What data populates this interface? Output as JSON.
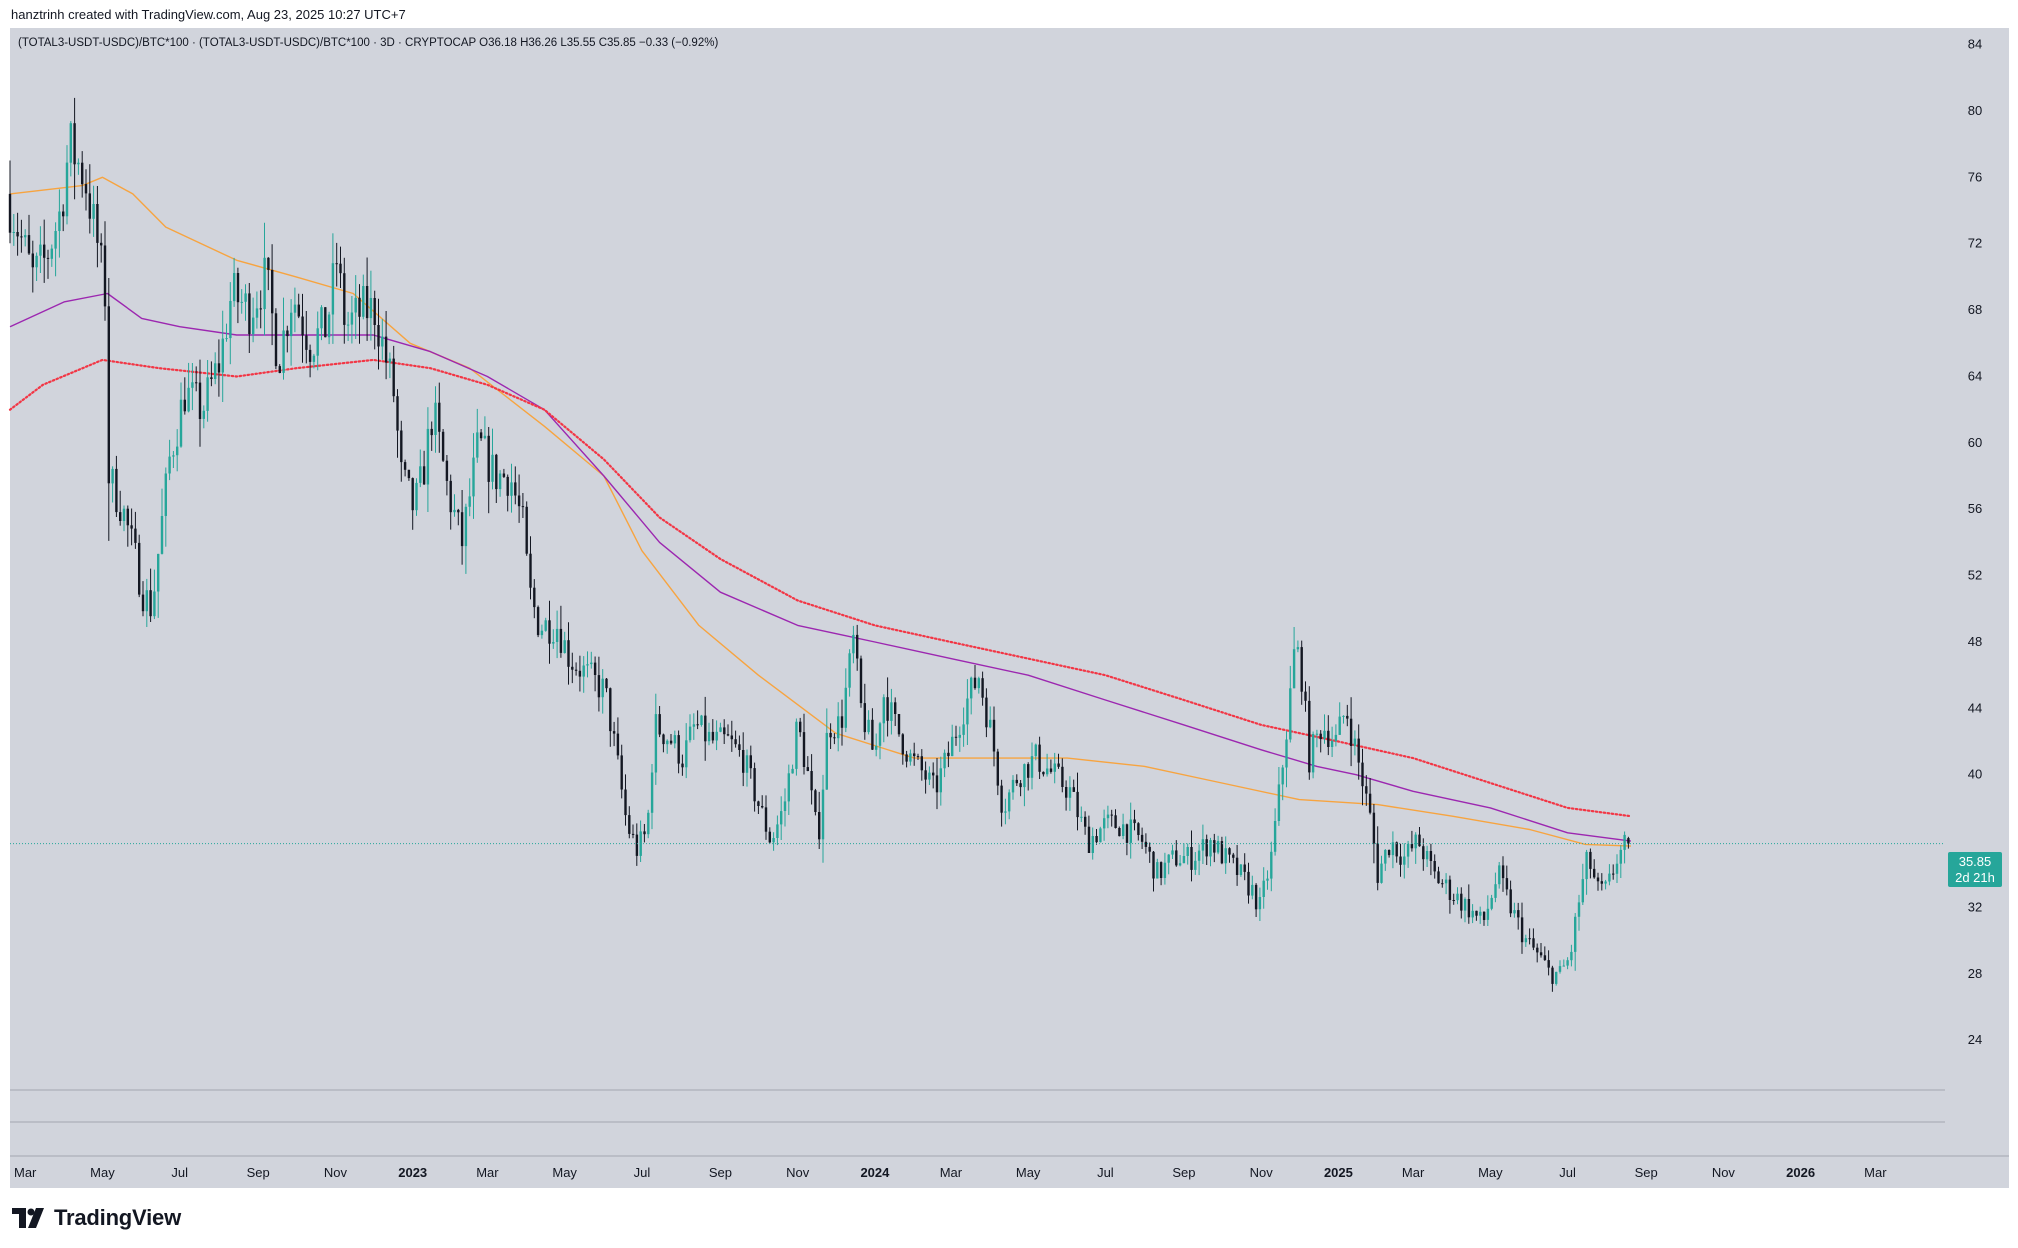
{
  "header": {
    "creator_line": "hanztrinh created with TradingView.com, Aug 23, 2025 10:27 UTC+7",
    "legend_line": "(TOTAL3-USDT-USDC)/BTC*100 · (TOTAL3-USDT-USDC)/BTC*100 · 3D · CRYPTOCAP  O36.18  H36.26  L35.55  C35.85  −0.33 (−0.92%)"
  },
  "brand": {
    "name": "TradingView",
    "logo_icon": "tradingview-logo-icon"
  },
  "price_badge": {
    "price": "35.85",
    "countdown": "2d 21h",
    "color": "#26a69a"
  },
  "colors": {
    "background": "#d1d4dc",
    "up": "#26a69a",
    "down": "#131722",
    "ma_orange": "#f7a440",
    "ma_purple": "#9c27b0",
    "ma_red_dotted": "#f23645",
    "last_price_line": "#26a69a"
  },
  "chart_data": {
    "type": "candlestick",
    "timeframe": "3D",
    "symbol": "(TOTAL3-USDT-USDC)/BTC*100",
    "last": {
      "open": 36.18,
      "high": 36.26,
      "low": 35.55,
      "close": 35.85,
      "change": -0.33,
      "change_pct": -0.92
    },
    "ylim": [
      21,
      85
    ],
    "y_ticks": [
      84,
      80,
      76,
      72,
      68,
      64,
      60,
      56,
      52,
      48,
      44,
      40,
      32,
      28,
      24
    ],
    "x_range": [
      "2022-02-17",
      "2026-04-25"
    ],
    "x_ticks": [
      {
        "date": "2022-03-01",
        "label": "Mar"
      },
      {
        "date": "2022-05-01",
        "label": "May"
      },
      {
        "date": "2022-07-01",
        "label": "Jul"
      },
      {
        "date": "2022-09-01",
        "label": "Sep"
      },
      {
        "date": "2022-11-01",
        "label": "Nov"
      },
      {
        "date": "2023-01-01",
        "label": "2023",
        "bold": true
      },
      {
        "date": "2023-03-01",
        "label": "Mar"
      },
      {
        "date": "2023-05-01",
        "label": "May"
      },
      {
        "date": "2023-07-01",
        "label": "Jul"
      },
      {
        "date": "2023-09-01",
        "label": "Sep"
      },
      {
        "date": "2023-11-01",
        "label": "Nov"
      },
      {
        "date": "2024-01-01",
        "label": "2024",
        "bold": true
      },
      {
        "date": "2024-03-01",
        "label": "Mar"
      },
      {
        "date": "2024-05-01",
        "label": "May"
      },
      {
        "date": "2024-07-01",
        "label": "Jul"
      },
      {
        "date": "2024-09-01",
        "label": "Sep"
      },
      {
        "date": "2024-11-01",
        "label": "Nov"
      },
      {
        "date": "2025-01-01",
        "label": "2025",
        "bold": true
      },
      {
        "date": "2025-03-01",
        "label": "Mar"
      },
      {
        "date": "2025-05-01",
        "label": "May"
      },
      {
        "date": "2025-07-01",
        "label": "Jul"
      },
      {
        "date": "2025-09-01",
        "label": "Sep"
      },
      {
        "date": "2025-11-01",
        "label": "Nov"
      },
      {
        "date": "2026-01-01",
        "label": "2026",
        "bold": true
      },
      {
        "date": "2026-03-01",
        "label": "Mar"
      }
    ],
    "price_path": [
      [
        "2022-02-17",
        75
      ],
      [
        "2022-02-26",
        73
      ],
      [
        "2022-03-10",
        70
      ],
      [
        "2022-03-20",
        71
      ],
      [
        "2022-04-01",
        74
      ],
      [
        "2022-04-08",
        78
      ],
      [
        "2022-04-20",
        76
      ],
      [
        "2022-04-30",
        72
      ],
      [
        "2022-05-06",
        69
      ],
      [
        "2022-05-09",
        58
      ],
      [
        "2022-05-20",
        56
      ],
      [
        "2022-05-30",
        53
      ],
      [
        "2022-06-05",
        51
      ],
      [
        "2022-06-12",
        50
      ],
      [
        "2022-06-18",
        54
      ],
      [
        "2022-06-26",
        59
      ],
      [
        "2022-07-08",
        63
      ],
      [
        "2022-07-22",
        62
      ],
      [
        "2022-08-05",
        65
      ],
      [
        "2022-08-14",
        69
      ],
      [
        "2022-08-28",
        68
      ],
      [
        "2022-09-10",
        70
      ],
      [
        "2022-09-20",
        65
      ],
      [
        "2022-10-01",
        69
      ],
      [
        "2022-10-15",
        66
      ],
      [
        "2022-10-28",
        67
      ],
      [
        "2022-11-05",
        71
      ],
      [
        "2022-11-12",
        67
      ],
      [
        "2022-11-26",
        68
      ],
      [
        "2022-12-05",
        68
      ],
      [
        "2022-12-14",
        65
      ],
      [
        "2022-12-20",
        63
      ],
      [
        "2022-12-26",
        58
      ],
      [
        "2023-01-05",
        56
      ],
      [
        "2023-01-12",
        58
      ],
      [
        "2023-01-20",
        62
      ],
      [
        "2023-02-01",
        57
      ],
      [
        "2023-02-12",
        54
      ],
      [
        "2023-02-25",
        60
      ],
      [
        "2023-03-10",
        58
      ],
      [
        "2023-03-22",
        58
      ],
      [
        "2023-04-01",
        55
      ],
      [
        "2023-04-06",
        51
      ],
      [
        "2023-04-14",
        49
      ],
      [
        "2023-04-28",
        49
      ],
      [
        "2023-05-08",
        47
      ],
      [
        "2023-05-22",
        46
      ],
      [
        "2023-06-05",
        45
      ],
      [
        "2023-06-14",
        41
      ],
      [
        "2023-06-22",
        37
      ],
      [
        "2023-06-30",
        35.5
      ],
      [
        "2023-07-08",
        36.5
      ],
      [
        "2023-07-14",
        43
      ],
      [
        "2023-07-28",
        42
      ],
      [
        "2023-08-05",
        41
      ],
      [
        "2023-08-15",
        43
      ],
      [
        "2023-08-28",
        42
      ],
      [
        "2023-09-10",
        42
      ],
      [
        "2023-09-22",
        41
      ],
      [
        "2023-10-05",
        38
      ],
      [
        "2023-10-14",
        36
      ],
      [
        "2023-10-24",
        38
      ],
      [
        "2023-11-04",
        43
      ],
      [
        "2023-11-12",
        40
      ],
      [
        "2023-11-20",
        36
      ],
      [
        "2023-11-28",
        43
      ],
      [
        "2023-12-08",
        43
      ],
      [
        "2023-12-18",
        48
      ],
      [
        "2023-12-24",
        44
      ],
      [
        "2024-01-04",
        41
      ],
      [
        "2024-01-10",
        45
      ],
      [
        "2024-01-20",
        43
      ],
      [
        "2024-02-01",
        41
      ],
      [
        "2024-02-12",
        40
      ],
      [
        "2024-02-20",
        39
      ],
      [
        "2024-03-01",
        41
      ],
      [
        "2024-03-14",
        44
      ],
      [
        "2024-03-26",
        46
      ],
      [
        "2024-04-06",
        42
      ],
      [
        "2024-04-14",
        38
      ],
      [
        "2024-04-26",
        40
      ],
      [
        "2024-05-10",
        41
      ],
      [
        "2024-05-24",
        40
      ],
      [
        "2024-06-06",
        39
      ],
      [
        "2024-06-20",
        36
      ],
      [
        "2024-07-04",
        37
      ],
      [
        "2024-07-16",
        37
      ],
      [
        "2024-08-02",
        36
      ],
      [
        "2024-08-14",
        34
      ],
      [
        "2024-08-28",
        35
      ],
      [
        "2024-09-10",
        35
      ],
      [
        "2024-09-25",
        36
      ],
      [
        "2024-10-06",
        35
      ],
      [
        "2024-10-18",
        34
      ],
      [
        "2024-10-28",
        33
      ],
      [
        "2024-11-03",
        32
      ],
      [
        "2024-11-12",
        35
      ],
      [
        "2024-11-20",
        40
      ],
      [
        "2024-11-26",
        44
      ],
      [
        "2024-12-01",
        48
      ],
      [
        "2024-12-06",
        46
      ],
      [
        "2024-12-12",
        41
      ],
      [
        "2024-12-22",
        43
      ],
      [
        "2025-01-02",
        42
      ],
      [
        "2025-01-10",
        44
      ],
      [
        "2025-01-22",
        40
      ],
      [
        "2025-01-30",
        37
      ],
      [
        "2025-02-04",
        34
      ],
      [
        "2025-02-14",
        36
      ],
      [
        "2025-02-25",
        35
      ],
      [
        "2025-03-08",
        36
      ],
      [
        "2025-03-20",
        34
      ],
      [
        "2025-04-02",
        33
      ],
      [
        "2025-04-16",
        32
      ],
      [
        "2025-04-28",
        31
      ],
      [
        "2025-05-10",
        34
      ],
      [
        "2025-05-20",
        32
      ],
      [
        "2025-06-01",
        30
      ],
      [
        "2025-06-12",
        29
      ],
      [
        "2025-06-20",
        28
      ],
      [
        "2025-06-28",
        28
      ],
      [
        "2025-07-06",
        29
      ],
      [
        "2025-07-12",
        32
      ],
      [
        "2025-07-20",
        35
      ],
      [
        "2025-07-28",
        33
      ],
      [
        "2025-08-04",
        33
      ],
      [
        "2025-08-12",
        35
      ],
      [
        "2025-08-20",
        35.85
      ]
    ],
    "moving_averages": [
      {
        "color": "#f7a440",
        "style": "solid",
        "points": [
          [
            "2022-02-17",
            75
          ],
          [
            "2022-04-15",
            75.5
          ],
          [
            "2022-05-01",
            76
          ],
          [
            "2022-05-25",
            75
          ],
          [
            "2022-06-20",
            73
          ],
          [
            "2022-08-15",
            71
          ],
          [
            "2022-10-01",
            70
          ],
          [
            "2022-11-15",
            69
          ],
          [
            "2022-12-30",
            66
          ],
          [
            "2023-02-15",
            64.5
          ],
          [
            "2023-04-15",
            61
          ],
          [
            "2023-06-01",
            58
          ],
          [
            "2023-07-01",
            53.5
          ],
          [
            "2023-08-15",
            49
          ],
          [
            "2023-10-01",
            46
          ],
          [
            "2023-12-01",
            42.5
          ],
          [
            "2024-02-01",
            41
          ],
          [
            "2024-04-01",
            41
          ],
          [
            "2024-06-01",
            41
          ],
          [
            "2024-08-01",
            40.5
          ],
          [
            "2024-10-01",
            39.5
          ],
          [
            "2024-12-01",
            38.5
          ],
          [
            "2025-02-01",
            38.2
          ],
          [
            "2025-04-01",
            37.5
          ],
          [
            "2025-06-01",
            36.7
          ],
          [
            "2025-07-15",
            35.8
          ],
          [
            "2025-08-20",
            35.7
          ]
        ]
      },
      {
        "color": "#9c27b0",
        "style": "solid",
        "points": [
          [
            "2022-02-17",
            67
          ],
          [
            "2022-04-01",
            68.5
          ],
          [
            "2022-05-05",
            69
          ],
          [
            "2022-06-01",
            67.5
          ],
          [
            "2022-07-01",
            67
          ],
          [
            "2022-08-15",
            66.5
          ],
          [
            "2022-10-01",
            66.5
          ],
          [
            "2022-12-01",
            66.5
          ],
          [
            "2023-01-15",
            65.5
          ],
          [
            "2023-03-01",
            64
          ],
          [
            "2023-04-15",
            62
          ],
          [
            "2023-06-01",
            58
          ],
          [
            "2023-07-15",
            54
          ],
          [
            "2023-09-01",
            51
          ],
          [
            "2023-11-01",
            49
          ],
          [
            "2024-01-01",
            48
          ],
          [
            "2024-03-01",
            47
          ],
          [
            "2024-05-01",
            46
          ],
          [
            "2024-07-01",
            44.5
          ],
          [
            "2024-09-01",
            43
          ],
          [
            "2024-11-01",
            41.5
          ],
          [
            "2024-12-15",
            40.5
          ],
          [
            "2025-01-15",
            40
          ],
          [
            "2025-03-01",
            39
          ],
          [
            "2025-05-01",
            38
          ],
          [
            "2025-07-01",
            36.5
          ],
          [
            "2025-08-20",
            36
          ]
        ]
      },
      {
        "color": "#f23645",
        "style": "dotted",
        "points": [
          [
            "2022-02-17",
            62
          ],
          [
            "2022-03-15",
            63.5
          ],
          [
            "2022-05-01",
            65
          ],
          [
            "2022-06-15",
            64.5
          ],
          [
            "2022-08-15",
            64
          ],
          [
            "2022-10-01",
            64.5
          ],
          [
            "2022-12-01",
            65
          ],
          [
            "2023-01-15",
            64.5
          ],
          [
            "2023-03-01",
            63.5
          ],
          [
            "2023-04-15",
            62
          ],
          [
            "2023-06-01",
            59
          ],
          [
            "2023-07-15",
            55.5
          ],
          [
            "2023-09-01",
            53
          ],
          [
            "2023-11-01",
            50.5
          ],
          [
            "2024-01-01",
            49
          ],
          [
            "2024-03-01",
            48
          ],
          [
            "2024-05-01",
            47
          ],
          [
            "2024-07-01",
            46
          ],
          [
            "2024-09-01",
            44.5
          ],
          [
            "2024-11-01",
            43
          ],
          [
            "2025-01-01",
            42
          ],
          [
            "2025-03-01",
            41
          ],
          [
            "2025-05-01",
            39.5
          ],
          [
            "2025-07-01",
            38
          ],
          [
            "2025-08-20",
            37.5
          ]
        ]
      }
    ]
  }
}
